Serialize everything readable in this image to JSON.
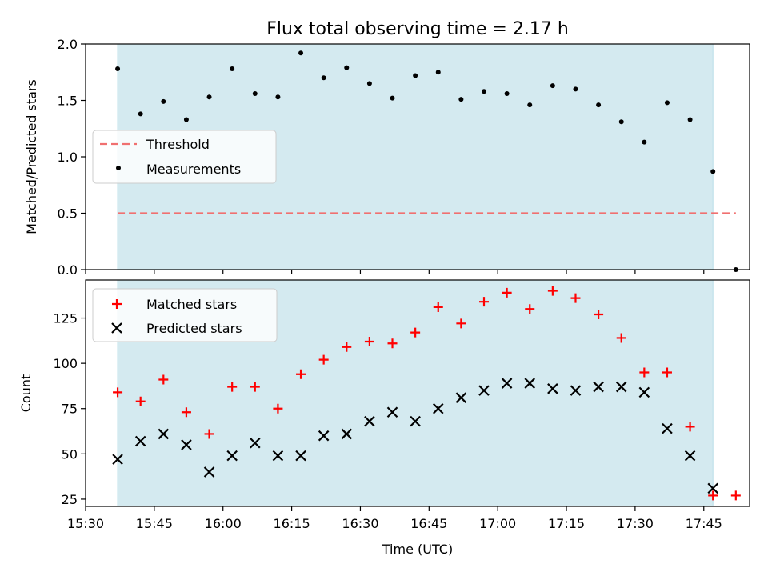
{
  "chart_data": [
    {
      "type": "scatter",
      "title": "Flux total observing time = 2.17 h",
      "ylabel": "Matched/Predicted stars",
      "xlim": [
        "15:30",
        "17:55"
      ],
      "ylim": [
        0,
        2.0
      ],
      "yticks": [
        0.0,
        0.5,
        1.0,
        1.5,
        2.0
      ],
      "shaded_span": [
        "15:37",
        "17:47"
      ],
      "legend": "center-left",
      "threshold": {
        "name": "Threshold",
        "value": 0.5,
        "x_range": [
          "15:37",
          "17:52"
        ],
        "color": "#f07070"
      },
      "series": [
        {
          "name": "Measurements",
          "x": [
            "15:37",
            "15:42",
            "15:47",
            "15:52",
            "15:57",
            "16:02",
            "16:07",
            "16:12",
            "16:17",
            "16:22",
            "16:27",
            "16:32",
            "16:37",
            "16:42",
            "16:47",
            "16:52",
            "16:57",
            "17:02",
            "17:07",
            "17:12",
            "17:17",
            "17:22",
            "17:27",
            "17:32",
            "17:37",
            "17:42",
            "17:47",
            "17:52"
          ],
          "y": [
            1.78,
            1.38,
            1.49,
            1.33,
            1.53,
            1.78,
            1.56,
            1.53,
            1.92,
            1.7,
            1.79,
            1.65,
            1.52,
            1.72,
            1.75,
            1.51,
            1.58,
            1.56,
            1.46,
            1.63,
            1.6,
            1.46,
            1.31,
            1.13,
            1.48,
            1.33,
            0.87,
            0.0
          ],
          "color": "#000000"
        }
      ]
    },
    {
      "type": "scatter",
      "ylabel": "Count",
      "xlabel": "Time (UTC)",
      "xlim": [
        "15:30",
        "17:55"
      ],
      "ylim": [
        21,
        146
      ],
      "yticks": [
        25,
        50,
        75,
        100,
        125
      ],
      "xticks": [
        "15:30",
        "15:45",
        "16:00",
        "16:15",
        "16:30",
        "16:45",
        "17:00",
        "17:15",
        "17:30",
        "17:45"
      ],
      "shaded_span": [
        "15:37",
        "17:47"
      ],
      "legend": "top-left",
      "series": [
        {
          "name": "Matched stars",
          "marker": "plus",
          "color": "#ff0000",
          "x": [
            "15:37",
            "15:42",
            "15:47",
            "15:52",
            "15:57",
            "16:02",
            "16:07",
            "16:12",
            "16:17",
            "16:22",
            "16:27",
            "16:32",
            "16:37",
            "16:42",
            "16:47",
            "16:52",
            "16:57",
            "17:02",
            "17:07",
            "17:12",
            "17:17",
            "17:22",
            "17:27",
            "17:32",
            "17:37",
            "17:42",
            "17:47",
            "17:52"
          ],
          "y": [
            84,
            79,
            91,
            73,
            61,
            87,
            87,
            75,
            94,
            102,
            109,
            112,
            111,
            117,
            131,
            122,
            134,
            139,
            130,
            140,
            136,
            127,
            114,
            95,
            95,
            65,
            27,
            27
          ]
        },
        {
          "name": "Predicted stars",
          "marker": "x",
          "color": "#000000",
          "x": [
            "15:37",
            "15:42",
            "15:47",
            "15:52",
            "15:57",
            "16:02",
            "16:07",
            "16:12",
            "16:17",
            "16:22",
            "16:27",
            "16:32",
            "16:37",
            "16:42",
            "16:47",
            "16:52",
            "16:57",
            "17:02",
            "17:07",
            "17:12",
            "17:17",
            "17:22",
            "17:27",
            "17:32",
            "17:37",
            "17:42",
            "17:47"
          ],
          "y": [
            47,
            57,
            61,
            55,
            40,
            49,
            56,
            49,
            49,
            60,
            61,
            68,
            73,
            68,
            75,
            81,
            85,
            89,
            89,
            86,
            85,
            87,
            87,
            84,
            64,
            49,
            31
          ]
        }
      ]
    }
  ],
  "colors": {
    "span_fill": "#d4eaf0",
    "span_edge": "#b9dfe8"
  }
}
